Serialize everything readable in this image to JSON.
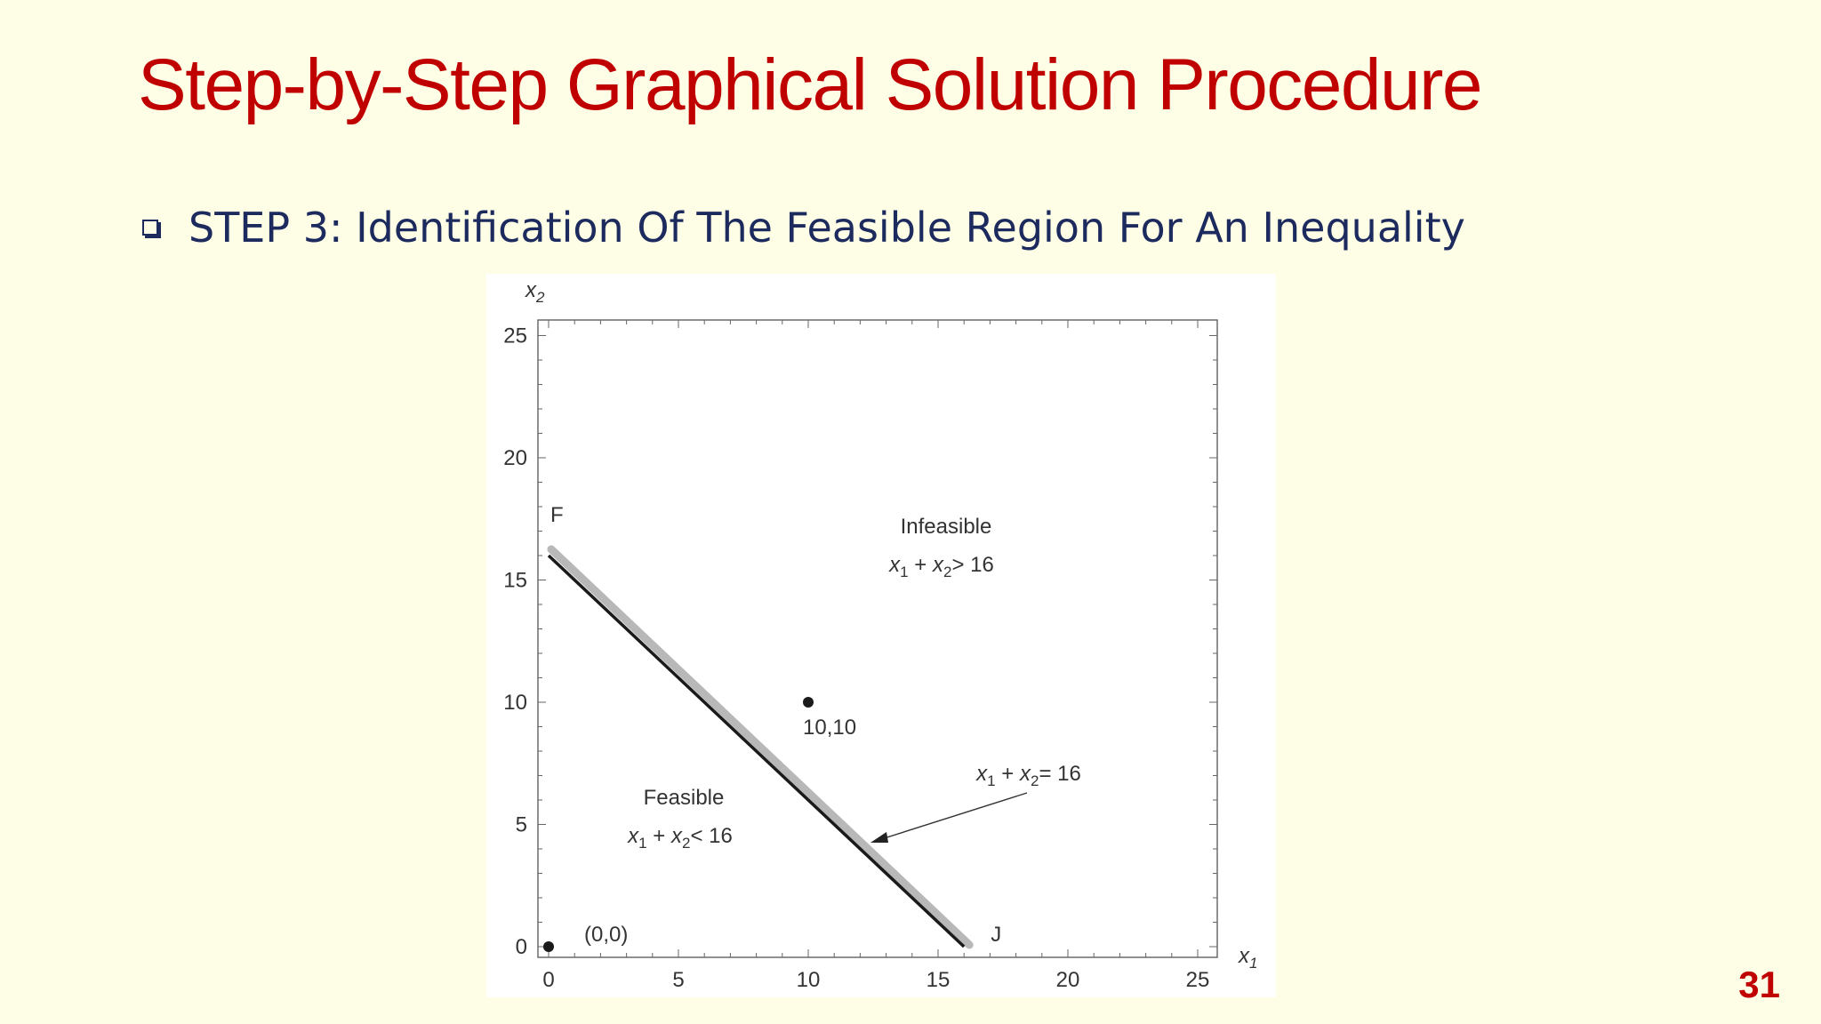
{
  "slide": {
    "title": "Step-by-Step Graphical Solution Procedure",
    "bullet": "STEP 3: Identification Of The Feasible Region For An Inequality",
    "page_number": "31"
  },
  "chart_data": {
    "type": "line",
    "xlabel": "x1",
    "ylabel": "x2",
    "xlim": [
      0,
      25
    ],
    "ylim": [
      0,
      25
    ],
    "xticks": [
      0,
      5,
      10,
      15,
      20,
      25
    ],
    "yticks": [
      0,
      5,
      10,
      15,
      20,
      25
    ],
    "grid": false,
    "series": [
      {
        "name": "x1 + x2 = 16",
        "x": [
          0,
          16
        ],
        "y": [
          16,
          0
        ]
      }
    ],
    "points": [
      {
        "x": 0,
        "y": 0,
        "label": "(0,0)"
      },
      {
        "x": 10,
        "y": 10,
        "label": "10,10"
      }
    ],
    "endpoint_labels": [
      {
        "x": 0,
        "y": 16,
        "label": "F"
      },
      {
        "x": 16,
        "y": 0,
        "label": "J"
      }
    ],
    "region_labels": [
      {
        "title": "Infeasible",
        "condition": "> 16"
      },
      {
        "title": "Feasible",
        "condition": "< 16"
      }
    ],
    "line_annotation": "= 16",
    "colors": {
      "line": "#1a1a1a",
      "line_shadow": "#b8b8b8",
      "point": "#1a1a1a"
    }
  }
}
